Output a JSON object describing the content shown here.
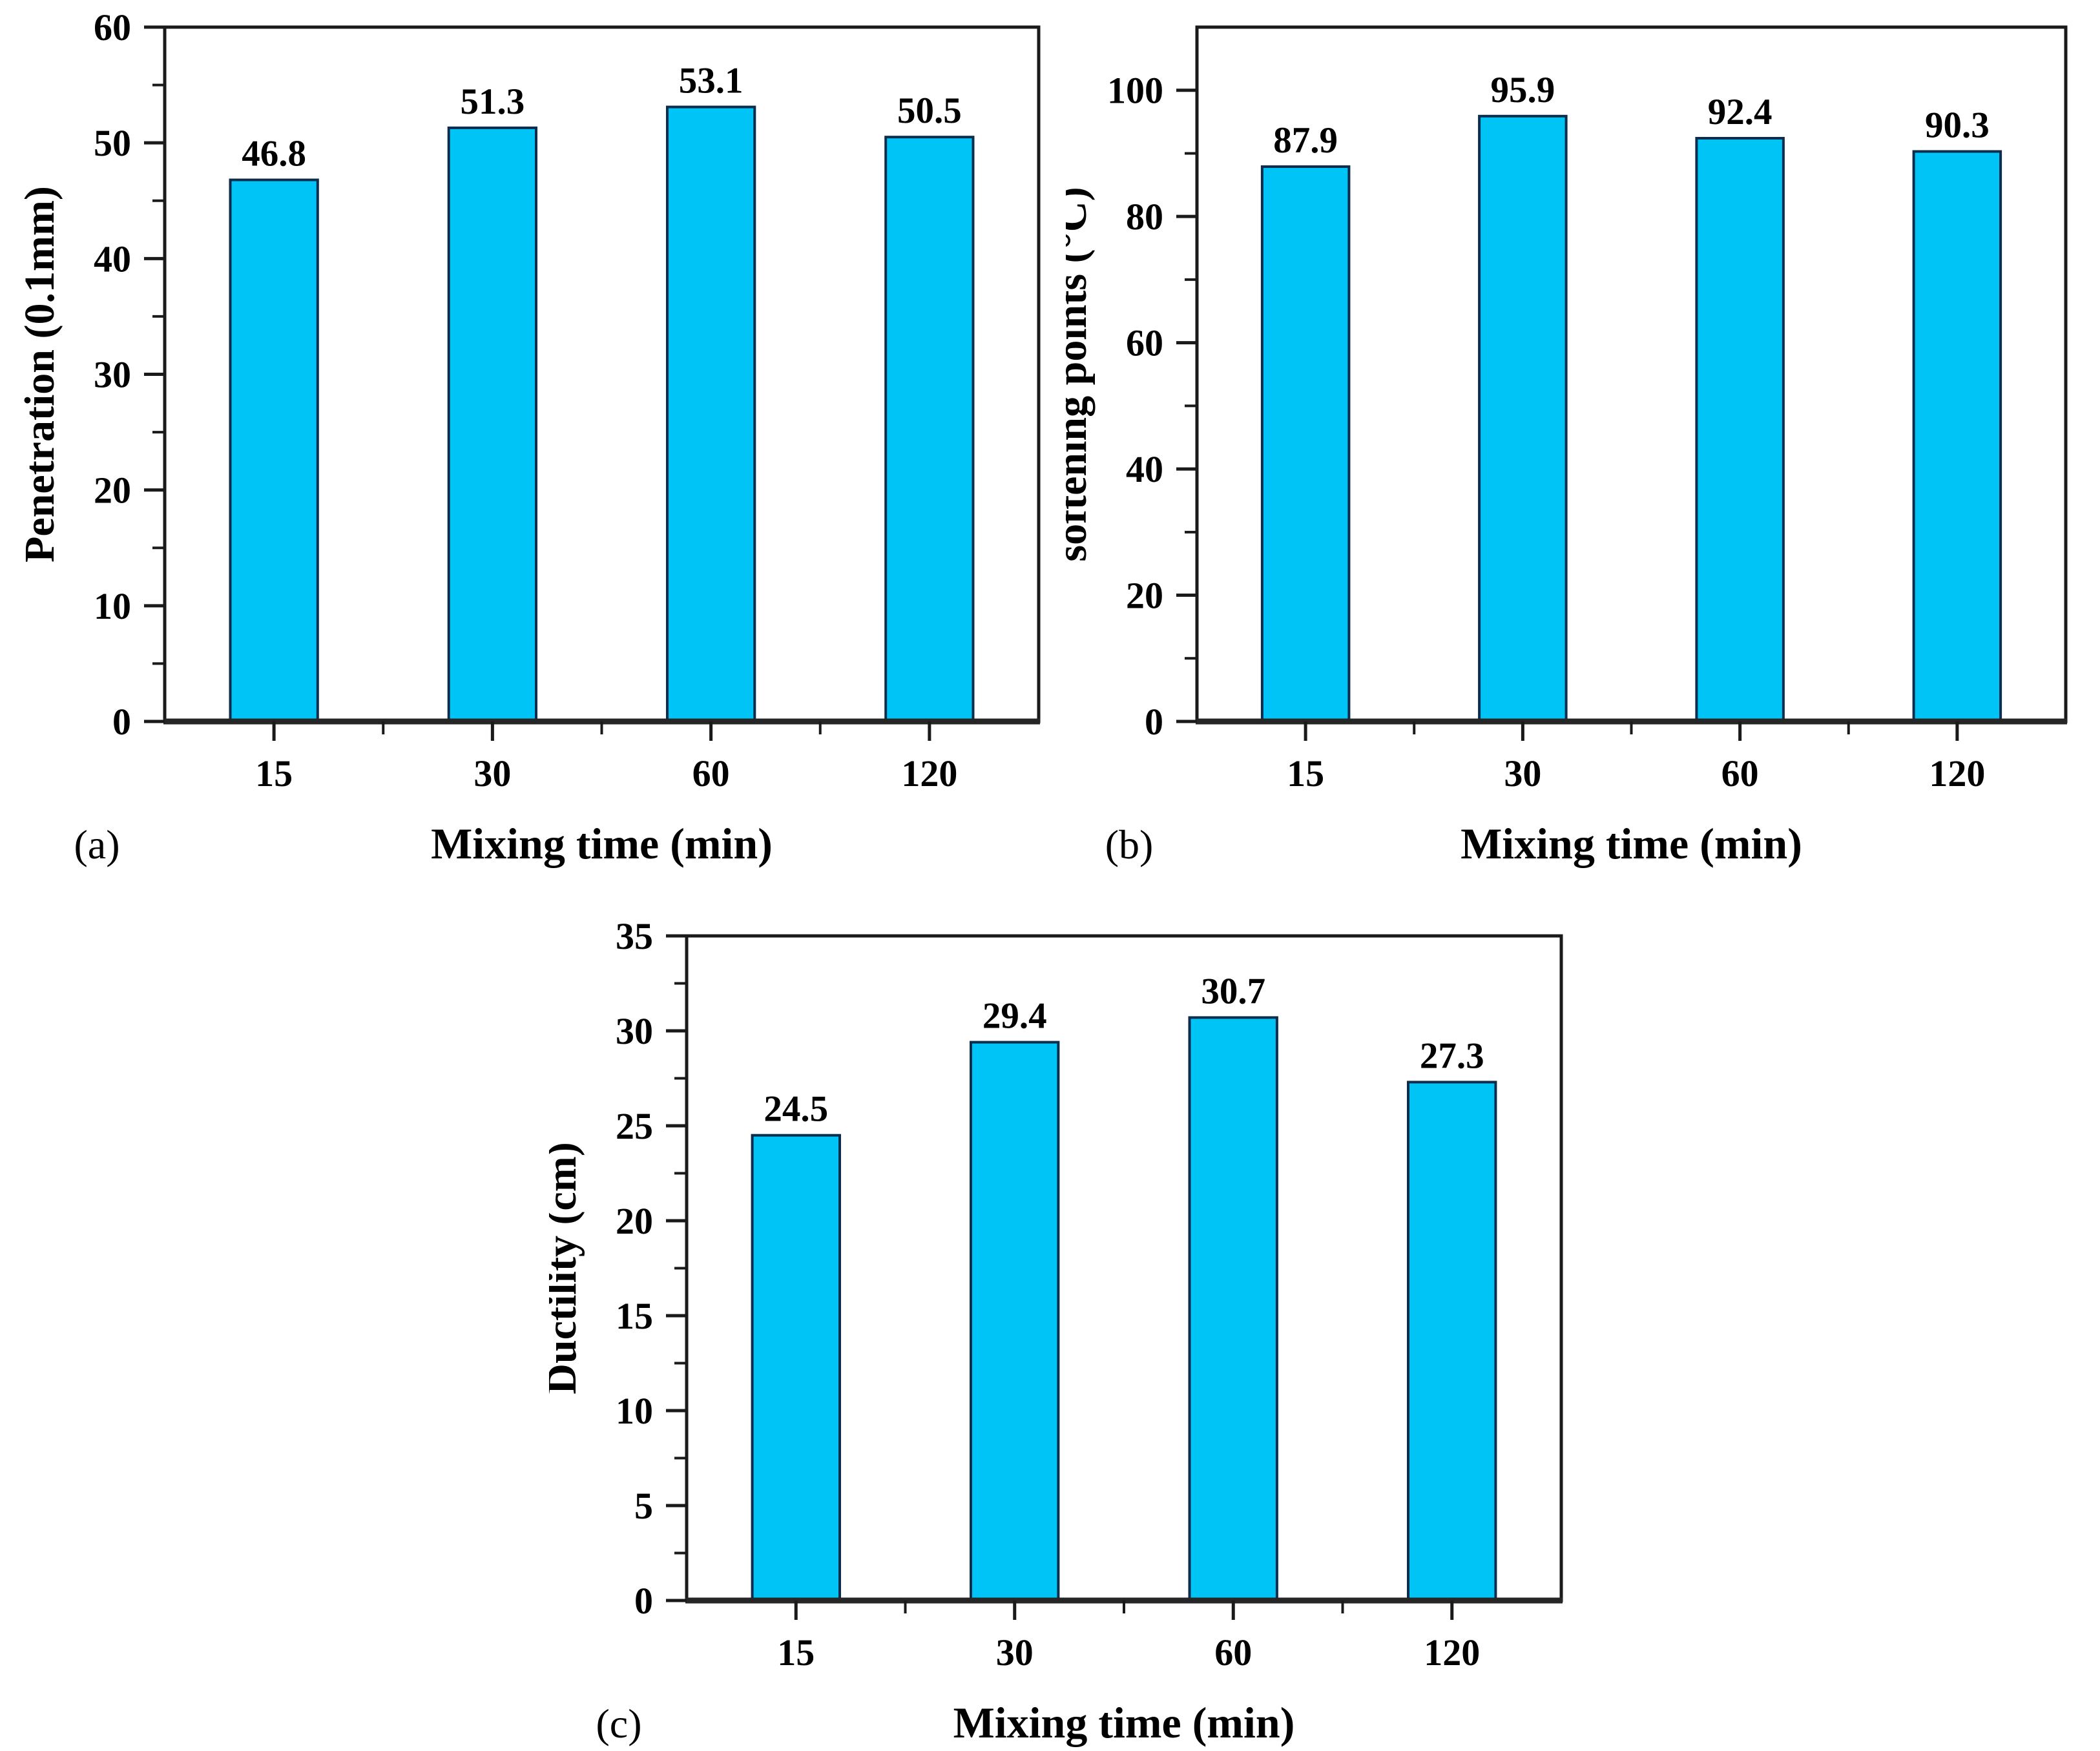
{
  "page": {
    "background": "#ffffff",
    "description": "Three-panel bar chart figure of bitumen properties vs mixing time"
  },
  "styles": {
    "bar_fill": "#00c4f6",
    "bar_edge": "#0d2d4d",
    "axis_color": "#1a1a1a",
    "spine_color": "#262626",
    "text_color": "#000000"
  },
  "chart_data": [
    {
      "type": "bar",
      "panel_label": "(a)",
      "title": "",
      "xlabel": "Mixing time (min)",
      "ylabel": "Penetration (0.1mm)",
      "categories": [
        "15",
        "30",
        "60",
        "120"
      ],
      "values": [
        46.8,
        51.3,
        53.1,
        50.5
      ],
      "value_labels": [
        "46.8",
        "51.3",
        "53.1",
        "50.5"
      ],
      "ylim": [
        0,
        60
      ],
      "ytick_major": 10,
      "ytick_minor": 5,
      "ytick_labels": [
        "0",
        "10",
        "20",
        "30",
        "40",
        "50",
        "60"
      ],
      "grid": false,
      "legend": null
    },
    {
      "type": "bar",
      "panel_label": "(b)",
      "title": "",
      "xlabel": "Mixing time (min)",
      "ylabel": "softening points (°C)",
      "categories": [
        "15",
        "30",
        "60",
        "120"
      ],
      "values": [
        87.9,
        95.9,
        92.4,
        90.3
      ],
      "value_labels": [
        "87.9",
        "95.9",
        "92.4",
        "90.3"
      ],
      "ylim": [
        0,
        110
      ],
      "ytick_major": 20,
      "ytick_minor": 10,
      "ytick_labels": [
        "0",
        "20",
        "40",
        "60",
        "80",
        "100"
      ],
      "grid": false,
      "legend": null
    },
    {
      "type": "bar",
      "panel_label": "(c)",
      "title": "",
      "xlabel": "Mixing time (min)",
      "ylabel": "Ductility (cm)",
      "categories": [
        "15",
        "30",
        "60",
        "120"
      ],
      "values": [
        24.5,
        29.4,
        30.7,
        27.3
      ],
      "value_labels": [
        "24.5",
        "29.4",
        "30.7",
        "27.3"
      ],
      "ylim": [
        0,
        35
      ],
      "ytick_major": 5,
      "ytick_minor": 2.5,
      "ytick_labels": [
        "0",
        "5",
        "10",
        "15",
        "20",
        "25",
        "30",
        "35"
      ],
      "grid": false,
      "legend": null
    }
  ]
}
